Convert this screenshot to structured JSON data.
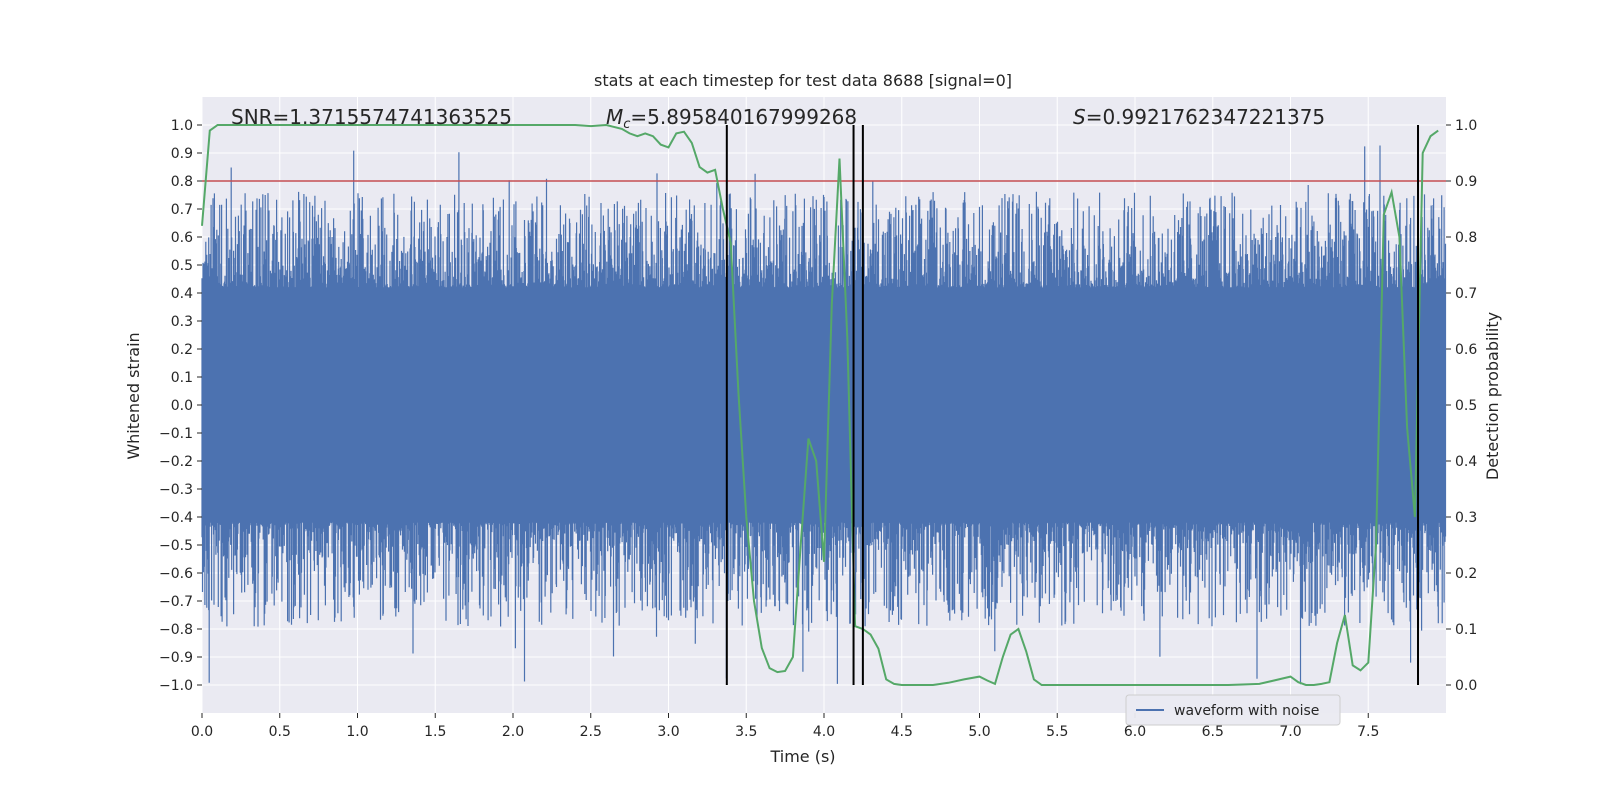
{
  "chart_data": {
    "type": "line",
    "title": "stats at each timestep for test data 8688 [signal=0]",
    "xlabel": "Time (s)",
    "ylabel_left": "Whitened strain",
    "ylabel_right": "Detection probability",
    "xlim": [
      0.0,
      8.0
    ],
    "ylim_left": [
      -1.1,
      1.1
    ],
    "ylim_right": [
      -0.05,
      1.05
    ],
    "x_ticks": [
      "0.0",
      "0.5",
      "1.0",
      "1.5",
      "2.0",
      "2.5",
      "3.0",
      "3.5",
      "4.0",
      "4.5",
      "5.0",
      "5.5",
      "6.0",
      "6.5",
      "7.0",
      "7.5"
    ],
    "y_ticks_left": [
      "1.0",
      "0.9",
      "0.8",
      "0.7",
      "0.6",
      "0.5",
      "0.4",
      "0.3",
      "0.2",
      "0.1",
      "0.0",
      "−0.1",
      "−0.2",
      "−0.3",
      "−0.4",
      "−0.5",
      "−0.6",
      "−0.7",
      "−0.8",
      "−0.9",
      "−1.0"
    ],
    "y_ticks_right": [
      "1.0",
      "0.9",
      "0.8",
      "0.7",
      "0.6",
      "0.5",
      "0.4",
      "0.3",
      "0.2",
      "0.1",
      "0.0"
    ],
    "annotations": {
      "snr": "SNR=1.3715574741363525",
      "mc_symbol": "M",
      "mc_subscript": "c",
      "mc_value": "=5.895840167999268",
      "s_symbol": "S",
      "s_value": "=0.9921762347221375"
    },
    "threshold": {
      "value": 0.9,
      "axis": "right"
    },
    "vertical_lines": [
      3.375,
      4.19,
      4.25,
      7.82
    ],
    "waveform": {
      "name": "waveform with noise",
      "band": [
        -0.4,
        0.4
      ],
      "spike_max": 0.97,
      "spike_min": -1.0
    },
    "detection_probability": {
      "x": [
        0.0,
        0.05,
        0.1,
        0.2,
        0.3,
        0.5,
        1.0,
        1.5,
        2.0,
        2.3,
        2.4,
        2.5,
        2.6,
        2.7,
        2.75,
        2.8,
        2.85,
        2.9,
        2.95,
        3.0,
        3.05,
        3.1,
        3.15,
        3.2,
        3.25,
        3.3,
        3.35,
        3.4,
        3.45,
        3.5,
        3.55,
        3.6,
        3.65,
        3.7,
        3.75,
        3.8,
        3.85,
        3.9,
        3.95,
        4.0,
        4.05,
        4.1,
        4.15,
        4.2,
        4.25,
        4.3,
        4.35,
        4.4,
        4.45,
        4.5,
        4.55,
        4.6,
        4.7,
        4.8,
        4.9,
        5.0,
        5.05,
        5.1,
        5.15,
        5.2,
        5.25,
        5.3,
        5.35,
        5.4,
        5.45,
        5.5,
        5.55,
        5.6,
        5.7,
        5.8,
        5.9,
        6.0,
        6.2,
        6.4,
        6.6,
        6.8,
        7.0,
        7.05,
        7.1,
        7.15,
        7.2,
        7.25,
        7.3,
        7.35,
        7.4,
        7.45,
        7.5,
        7.55,
        7.6,
        7.65,
        7.7,
        7.75,
        7.8,
        7.85,
        7.9,
        7.95
      ],
      "y": [
        0.82,
        0.99,
        1.0,
        1.0,
        1.0,
        1.0,
        1.0,
        1.0,
        1.0,
        1.0,
        1.0,
        0.998,
        1.0,
        0.993,
        0.985,
        0.98,
        0.985,
        0.98,
        0.965,
        0.96,
        0.985,
        0.988,
        0.968,
        0.925,
        0.915,
        0.92,
        0.85,
        0.79,
        0.52,
        0.3,
        0.15,
        0.066,
        0.03,
        0.023,
        0.025,
        0.05,
        0.25,
        0.44,
        0.4,
        0.22,
        0.68,
        0.94,
        0.62,
        0.105,
        0.1,
        0.09,
        0.065,
        0.01,
        0.002,
        0.0,
        0.0,
        0.0,
        0.0,
        0.004,
        0.01,
        0.015,
        0.008,
        0.002,
        0.05,
        0.09,
        0.1,
        0.06,
        0.01,
        0.0,
        0.0,
        0.0,
        0.0,
        0.0,
        0.0,
        0.0,
        0.0,
        0.0,
        0.0,
        0.0,
        0.0,
        0.002,
        0.015,
        0.005,
        0.0,
        0.0,
        0.002,
        0.005,
        0.075,
        0.125,
        0.035,
        0.026,
        0.04,
        0.25,
        0.84,
        0.88,
        0.8,
        0.46,
        0.3,
        0.95,
        0.98,
        0.99
      ]
    },
    "legend": {
      "entries": [
        "waveform with noise"
      ],
      "position": "lower-right"
    },
    "colors": {
      "background": "#EAEAF2",
      "grid": "#FFFFFF",
      "waveform": "#4C72B0",
      "probability": "#55A868",
      "threshold": "#C44E52",
      "vlines": "#000000",
      "text": "#262626"
    }
  }
}
